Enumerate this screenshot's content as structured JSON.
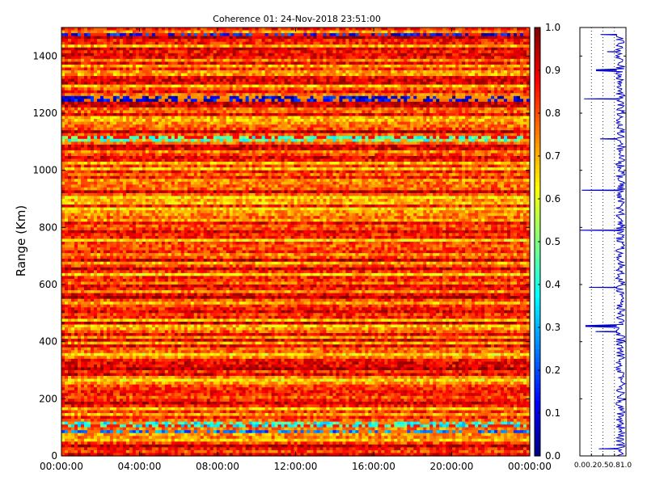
{
  "chart_data": {
    "type": "heatmap",
    "title": "Coherence 01: 24-Nov-2018 23:51:00",
    "xlabel": "",
    "ylabel": "Range (Km)",
    "x_ticks": [
      "00:00:00",
      "04:00:00",
      "08:00:00",
      "12:00:00",
      "16:00:00",
      "20:00:00",
      "00:00:00"
    ],
    "x_range_hours": [
      0,
      24
    ],
    "ylim": [
      0,
      1500
    ],
    "y_ticks": [
      0,
      200,
      400,
      600,
      800,
      1000,
      1200,
      1400
    ],
    "colorbar": {
      "colormap": "jet",
      "range": [
        0.0,
        1.0
      ],
      "ticks": [
        "0.0",
        "0.1",
        "0.2",
        "0.3",
        "0.4",
        "0.5",
        "0.6",
        "0.7",
        "0.8",
        "0.9",
        "1.0"
      ]
    },
    "heatmap_summary": {
      "typical_value_range": [
        0.65,
        0.95
      ],
      "low_coherence_bands_km": [
        {
          "range_km": 1475,
          "value": 0.15
        },
        {
          "range_km": 1250,
          "value": 0.1
        },
        {
          "range_km": 1110,
          "value": 0.45
        },
        {
          "range_km": 85,
          "value": 0.25
        },
        {
          "range_km": 110,
          "value": 0.4
        }
      ]
    },
    "side_profile": {
      "type": "line",
      "x_ticks": [
        "0.0",
        "0.2",
        "0.5",
        "0.8",
        "1.0"
      ],
      "xlim": [
        0.0,
        1.0
      ],
      "grid_x": [
        0.25,
        0.5,
        0.75
      ],
      "grid_style": "dotted",
      "dips": [
        {
          "range_km": 1475,
          "value": 0.45
        },
        {
          "range_km": 1415,
          "value": 0.6
        },
        {
          "range_km": 1350,
          "value": 0.35
        },
        {
          "range_km": 1250,
          "value": 0.1
        },
        {
          "range_km": 1110,
          "value": 0.45
        },
        {
          "range_km": 930,
          "value": 0.05
        },
        {
          "range_km": 790,
          "value": 0.0
        },
        {
          "range_km": 590,
          "value": 0.2
        },
        {
          "range_km": 455,
          "value": 0.4
        },
        {
          "range_km": 455,
          "value": 0.12
        },
        {
          "range_km": 435,
          "value": 0.35
        },
        {
          "range_km": 25,
          "value": 0.42
        }
      ],
      "color": "#0000cc"
    }
  }
}
